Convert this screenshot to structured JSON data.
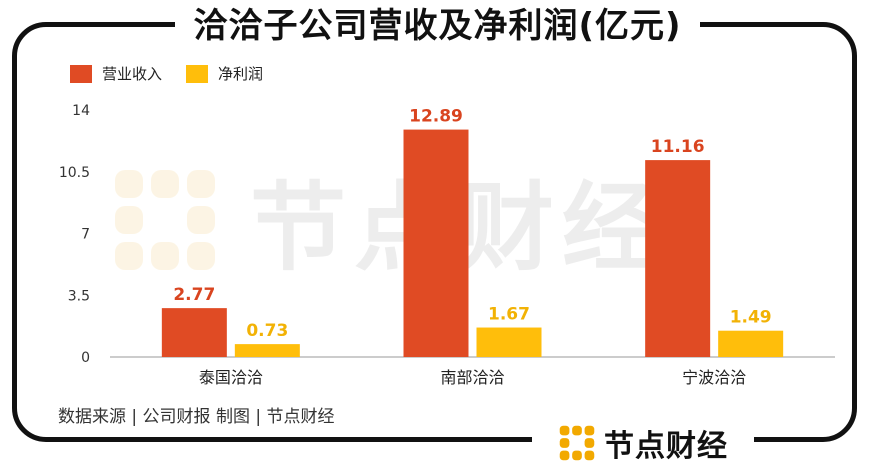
{
  "header": {
    "title": "洽洽子公司营收及净利润(亿元)"
  },
  "colors": {
    "revenue": "#E04B24",
    "profit": "#FFBE0B",
    "revenue_label": "#D9441F",
    "profit_label": "#F2B205"
  },
  "chart_data": {
    "type": "bar",
    "categories": [
      "泰国洽洽",
      "南部洽洽",
      "宁波洽洽"
    ],
    "series": [
      {
        "name": "营业收入",
        "values": [
          2.77,
          12.89,
          11.16
        ],
        "value_labels": [
          "2.77",
          "12.89",
          "11.16"
        ]
      },
      {
        "name": "净利润",
        "values": [
          0.73,
          1.67,
          1.49
        ],
        "value_labels": [
          "0.73",
          "1.67",
          "1.49"
        ]
      }
    ],
    "yticks": [
      0,
      3.5,
      7,
      10.5,
      14
    ],
    "ytick_labels": [
      "0",
      "3.5",
      "7",
      "10.5",
      "14"
    ],
    "ylim": [
      0,
      14
    ],
    "legend_position": "top-left",
    "grid": false
  },
  "footer": {
    "source": "数据来源 | 公司财报     制图 | 节点财经"
  },
  "brand": {
    "name": "节点财经",
    "icon": "dot-grid-logo-icon"
  },
  "watermark": {
    "text": "节点财经",
    "icon": "dot-grid-logo-icon"
  }
}
